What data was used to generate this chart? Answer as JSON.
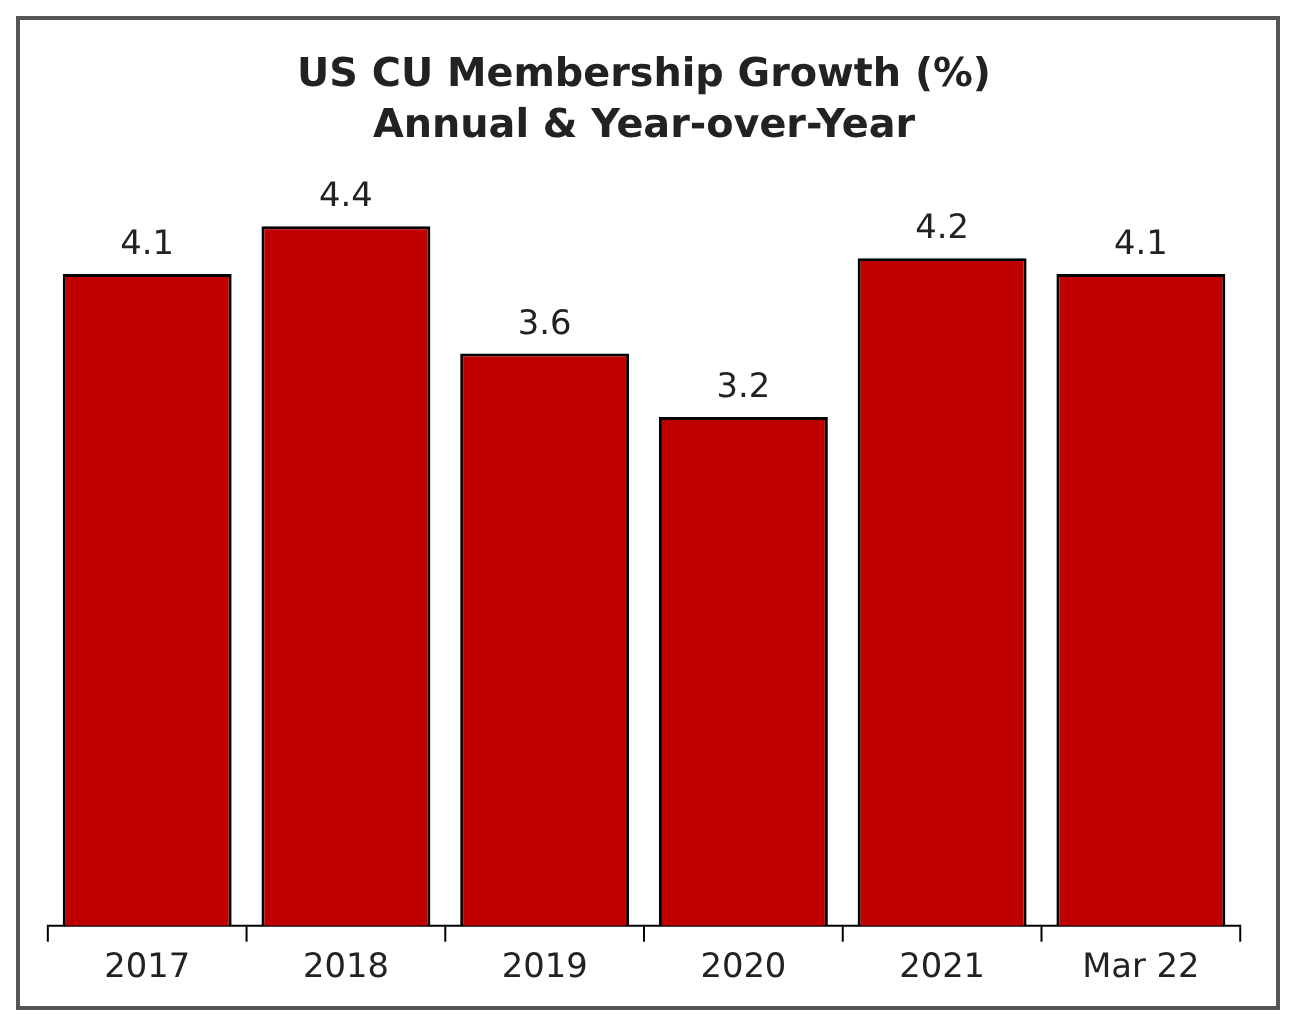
{
  "chart_data": {
    "type": "bar",
    "title": "US CU Membership Growth (%)",
    "subtitle": "Annual & Year-over-Year",
    "categories": [
      "2017",
      "2018",
      "2019",
      "2020",
      "2021",
      "Mar 22"
    ],
    "values": [
      4.1,
      4.4,
      3.6,
      3.2,
      4.2,
      4.1
    ],
    "color": "#c00000",
    "data_labels": true,
    "grid": false,
    "legend": false
  }
}
